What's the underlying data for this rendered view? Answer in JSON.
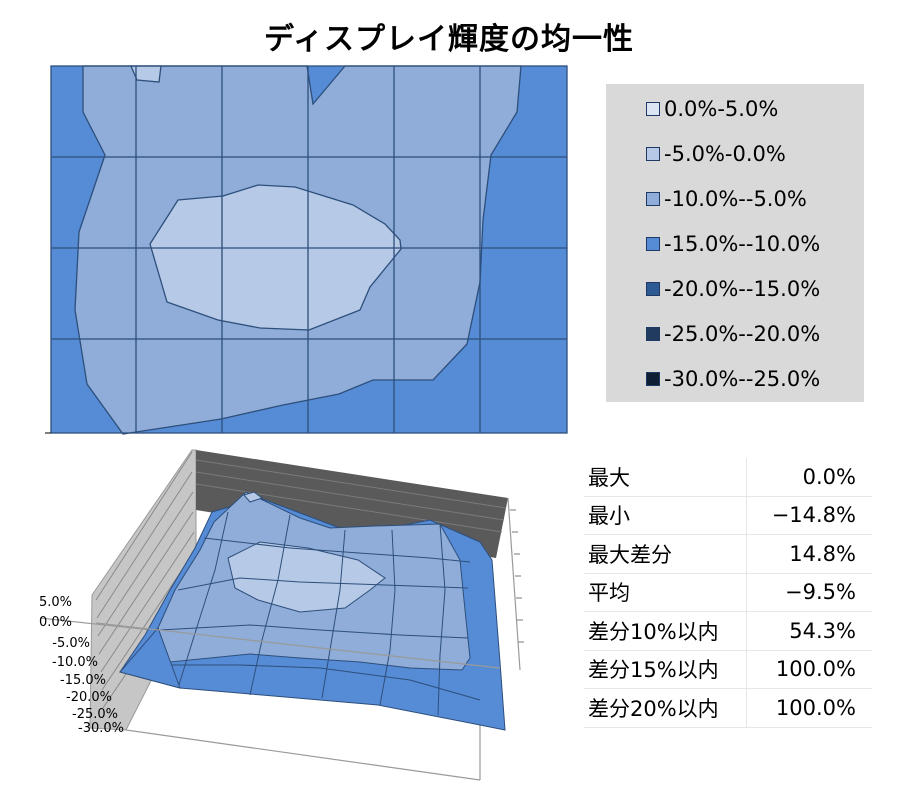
{
  "title": "ディスプレイ輝度の均一性",
  "colors": {
    "band_0_5": "#dbe5f3",
    "band_m5_0": "#b6c9e6",
    "band_m10_m5": "#8fadd8",
    "band_m15_m10": "#568bd6",
    "band_m20_m15": "#2e5a94",
    "band_m25_m20": "#203b5e",
    "band_m30_m25": "#0e1e33",
    "grid": "#2d4f7c",
    "wall": "#c0c0c0",
    "back_wall": "#5a5a5a"
  },
  "chart_data": [
    {
      "type": "contour",
      "title": "ディスプレイ輝度の均一性",
      "grid_lines": {
        "columns": 6,
        "rows": 4
      },
      "legend": {
        "placement": "right",
        "entries": [
          "0.0%-5.0%",
          "-5.0%-0.0%",
          "-10.0%--5.0%",
          "-15.0%--10.0%",
          "-20.0%--15.0%",
          "-25.0%--20.0%",
          "-30.0%--25.0%"
        ]
      }
    },
    {
      "type": "surface",
      "zlim": [
        -30,
        5
      ],
      "z_ticks": [
        "5.0%",
        "0.0%",
        "-5.0%",
        "-10.0%",
        "-15.0%",
        "-20.0%",
        "-25.0%",
        "-30.0%"
      ]
    }
  ],
  "stats": {
    "rows": [
      {
        "label": "最大",
        "value": "0.0%"
      },
      {
        "label": "最小",
        "value": "−14.8%"
      },
      {
        "label": "最大差分",
        "value": "14.8%"
      },
      {
        "label": "平均",
        "value": "−9.5%"
      },
      {
        "label": "差分10%以内",
        "value": "54.3%"
      },
      {
        "label": "差分15%以内",
        "value": "100.0%"
      },
      {
        "label": "差分20%以内",
        "value": "100.0%"
      }
    ]
  }
}
